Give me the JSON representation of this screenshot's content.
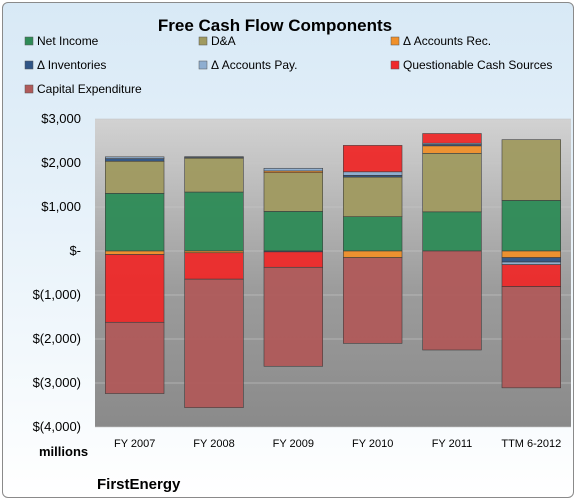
{
  "chart_data": {
    "type": "bar",
    "stacked": true,
    "title": "Free Cash Flow Components",
    "categories": [
      "FY 2007",
      "FY 2008",
      "FY 2009",
      "FY 2010",
      "FY 2011",
      "TTM 6-2012"
    ],
    "series": [
      {
        "name": "Net Income",
        "color": "#2e8b57",
        "values": [
          1310,
          1340,
          900,
          780,
          890,
          1150
        ]
      },
      {
        "name": "D&A",
        "color": "#a09a60",
        "values": [
          730,
          770,
          880,
          900,
          1330,
          1380
        ]
      },
      {
        "name": "Δ Accounts Rec.",
        "color": "#f0902a",
        "values": [
          -80,
          -40,
          40,
          -150,
          170,
          -150
        ]
      },
      {
        "name": "Δ Inventories",
        "color": "#2f5586",
        "values": [
          60,
          15,
          -20,
          40,
          30,
          -100
        ]
      },
      {
        "name": "Δ Accounts Pay.",
        "color": "#8eaed0",
        "values": [
          40,
          20,
          60,
          80,
          30,
          -60
        ]
      },
      {
        "name": "Questionable Cash Sources",
        "color": "#ee2a2a",
        "values": [
          -1540,
          -600,
          -350,
          600,
          220,
          -500
        ]
      },
      {
        "name": "Capital Expenditure",
        "color": "#b05a5a",
        "values": [
          -1620,
          -2920,
          -2250,
          -1950,
          -2250,
          -2300
        ]
      }
    ],
    "ylim": [
      -4000,
      3000
    ],
    "yticks": [
      3000,
      2000,
      1000,
      0,
      -1000,
      -2000,
      -3000,
      -4000
    ],
    "ytick_labels": [
      "$3,000",
      "$2,000",
      "$1,000",
      "$-",
      "$(1,000)",
      "$(2,000)",
      "$(3,000)",
      "$(4,000)"
    ],
    "unit_label": "millions",
    "company": "FirstEnergy",
    "legend_position": "top"
  }
}
